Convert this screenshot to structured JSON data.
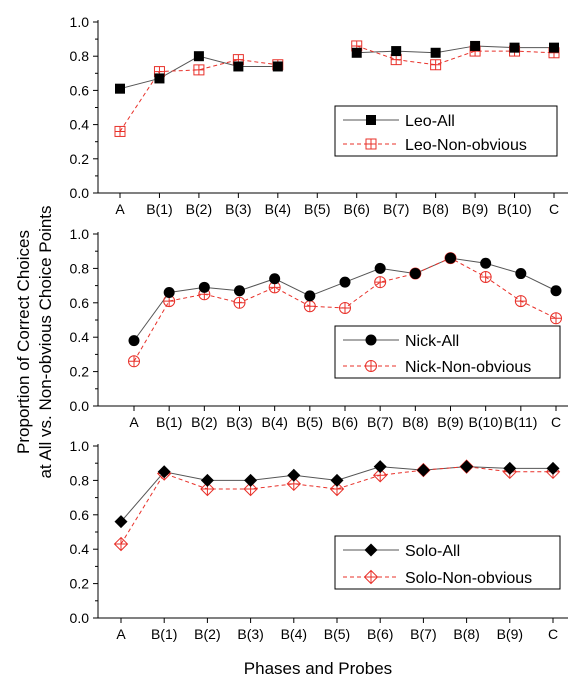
{
  "chart_data": [
    {
      "type": "line",
      "categories": [
        "A",
        "B(1)",
        "B(2)",
        "B(3)",
        "B(4)",
        "B(5)",
        "B(6)",
        "B(7)",
        "B(8)",
        "B(9)",
        "B(10)",
        "C"
      ],
      "ylim": [
        0,
        1.0
      ],
      "yticks": [
        "0.0",
        "0.2",
        "0.4",
        "0.6",
        "0.8",
        "1.0"
      ],
      "legend_position": "right",
      "series": [
        {
          "name": "Leo-All",
          "marker": "filled-square",
          "color": "#000000",
          "line_style": "solid",
          "line_color": "#555555",
          "values": [
            0.61,
            0.67,
            0.8,
            0.74,
            0.74,
            null,
            0.82,
            0.83,
            0.82,
            0.86,
            0.85,
            0.85
          ]
        },
        {
          "name": "Leo-Non-obvious",
          "marker": "crossed-open-square",
          "color": "#e8312a",
          "line_style": "dashed",
          "line_color": "#e8312a",
          "values": [
            0.36,
            0.71,
            0.72,
            0.78,
            0.75,
            null,
            0.86,
            0.78,
            0.75,
            0.83,
            0.83,
            0.82
          ]
        }
      ]
    },
    {
      "type": "line",
      "categories": [
        "A",
        "B(1)",
        "B(2)",
        "B(3)",
        "B(4)",
        "B(5)",
        "B(6)",
        "B(7)",
        "B(8)",
        "B(9)",
        "B(10)",
        "B(11)",
        "C"
      ],
      "ylim": [
        0,
        1.0
      ],
      "yticks": [
        "0.0",
        "0.2",
        "0.4",
        "0.6",
        "0.8",
        "1.0"
      ],
      "legend_position": "bottom-right",
      "series": [
        {
          "name": "Nick-All",
          "marker": "filled-circle",
          "color": "#000000",
          "line_style": "solid",
          "line_color": "#555555",
          "values": [
            0.38,
            0.66,
            0.69,
            0.67,
            0.74,
            0.64,
            0.72,
            0.8,
            0.77,
            0.86,
            0.83,
            0.77,
            0.67
          ]
        },
        {
          "name": "Nick-Non-obvious",
          "marker": "crossed-open-circle",
          "color": "#e8312a",
          "line_style": "dashed",
          "line_color": "#e8312a",
          "values": [
            0.26,
            0.61,
            0.65,
            0.6,
            0.69,
            0.58,
            0.57,
            0.72,
            0.77,
            0.86,
            0.75,
            0.61,
            0.51
          ]
        }
      ]
    },
    {
      "type": "line",
      "categories": [
        "A",
        "B(1)",
        "B(2)",
        "B(3)",
        "B(4)",
        "B(5)",
        "B(6)",
        "B(7)",
        "B(8)",
        "B(9)",
        "C"
      ],
      "ylim": [
        0,
        1.0
      ],
      "yticks": [
        "0.0",
        "0.2",
        "0.4",
        "0.6",
        "0.8",
        "1.0"
      ],
      "legend_position": "bottom-right",
      "series": [
        {
          "name": "Solo-All",
          "marker": "filled-diamond",
          "color": "#000000",
          "line_style": "solid",
          "line_color": "#555555",
          "values": [
            0.56,
            0.85,
            0.8,
            0.8,
            0.83,
            0.8,
            0.88,
            0.86,
            0.88,
            0.87,
            0.87
          ]
        },
        {
          "name": "Solo-Non-obvious",
          "marker": "crossed-open-diamond",
          "color": "#e8312a",
          "line_style": "dashed",
          "line_color": "#e8312a",
          "values": [
            0.43,
            0.84,
            0.75,
            0.75,
            0.78,
            0.75,
            0.83,
            0.86,
            0.88,
            0.85,
            0.85
          ]
        }
      ]
    }
  ],
  "ylabel_line1": "Proportion of Correct Choices",
  "ylabel_line2": "at All vs. Non-obvious Choice Points",
  "xlabel": "Phases and Probes"
}
